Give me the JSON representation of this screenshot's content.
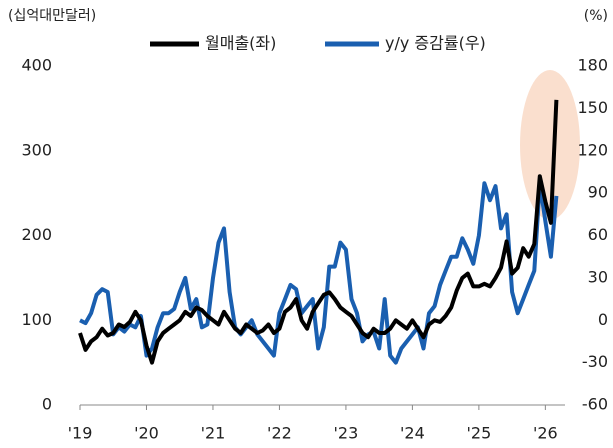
{
  "chart_data": {
    "type": "line",
    "y_label": "(십억대만달러)",
    "y2_label": "(%)",
    "categories": [
      "'19",
      null,
      null,
      null,
      null,
      null,
      null,
      null,
      null,
      null,
      null,
      null,
      "'20",
      null,
      null,
      null,
      null,
      null,
      null,
      null,
      null,
      null,
      null,
      null,
      "'21",
      null,
      null,
      null,
      null,
      null,
      null,
      null,
      null,
      null,
      null,
      null,
      "'22",
      null,
      null,
      null,
      null,
      null,
      null,
      null,
      null,
      null,
      null,
      null,
      "'23",
      null,
      null,
      null,
      null,
      null,
      null,
      null,
      null,
      null,
      null,
      null,
      "'24",
      null,
      null,
      null,
      null,
      null,
      null,
      null,
      null,
      null,
      null,
      null,
      "'25",
      null,
      null,
      null,
      null,
      null,
      null,
      null,
      null,
      null,
      null,
      null,
      "'26",
      null,
      null
    ],
    "series": [
      {
        "name": "월매출(좌)",
        "color": "#000000",
        "values": [
          85,
          65,
          75,
          80,
          90,
          82,
          85,
          95,
          92,
          98,
          110,
          100,
          70,
          50,
          75,
          85,
          90,
          95,
          100,
          110,
          105,
          115,
          112,
          105,
          100,
          95,
          110,
          100,
          90,
          85,
          95,
          90,
          85,
          88,
          95,
          85,
          90,
          110,
          115,
          125,
          100,
          90,
          110,
          120,
          130,
          133,
          125,
          115,
          110,
          105,
          95,
          85,
          80,
          90,
          85,
          85,
          90,
          100,
          95,
          90,
          100,
          90,
          80,
          95,
          100,
          98,
          105,
          115,
          135,
          150,
          155,
          140,
          140,
          143,
          140,
          150,
          162,
          193,
          155,
          162,
          185,
          175,
          190,
          270,
          240,
          215,
          360
        ]
      },
      {
        "name": "y/y 증감률(우)",
        "color": "#1a5fb0",
        "axis": "y2",
        "values": [
          0,
          -2,
          5,
          18,
          22,
          20,
          -10,
          -5,
          -8,
          -3,
          -5,
          3,
          -25,
          -20,
          -5,
          5,
          5,
          8,
          20,
          30,
          8,
          15,
          -5,
          -3,
          30,
          55,
          65,
          20,
          -5,
          -10,
          -5,
          0,
          -10,
          -15,
          -20,
          -25,
          5,
          15,
          25,
          22,
          5,
          10,
          15,
          -20,
          -5,
          38,
          38,
          55,
          50,
          15,
          5,
          -15,
          -10,
          -8,
          -20,
          15,
          -25,
          -30,
          -20,
          -15,
          -10,
          -5,
          -20,
          5,
          10,
          25,
          35,
          45,
          45,
          58,
          50,
          40,
          60,
          97,
          85,
          95,
          65,
          75,
          20,
          5,
          15,
          25,
          35,
          97,
          70,
          45,
          88
        ]
      }
    ],
    "ylim": [
      0,
      400
    ],
    "yticks": [
      0,
      100,
      200,
      300,
      400
    ],
    "y2lim": [
      -60,
      180
    ],
    "y2ticks": [
      -60,
      -30,
      0,
      30,
      60,
      90,
      120,
      150,
      180
    ]
  }
}
